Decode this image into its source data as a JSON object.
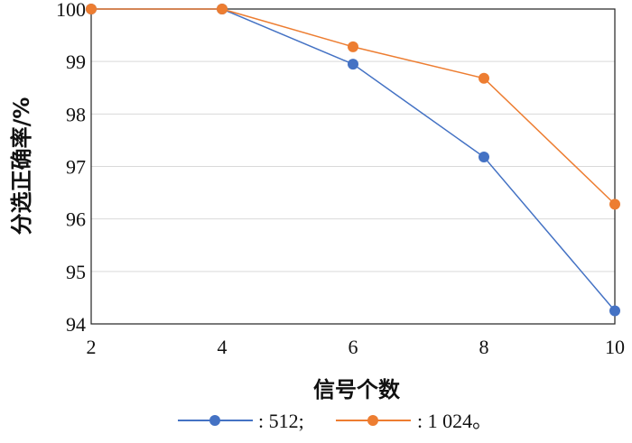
{
  "chart_data": {
    "type": "line",
    "title": "",
    "xlabel": "信号个数",
    "ylabel": "分选正确率/%",
    "x": [
      2,
      4,
      6,
      8,
      10
    ],
    "xlim": [
      2,
      10
    ],
    "ylim": [
      94,
      100
    ],
    "xticks": [
      "2",
      "4",
      "6",
      "8",
      "10"
    ],
    "yticks": [
      "94",
      "95",
      "96",
      "97",
      "98",
      "99",
      "100"
    ],
    "grid": "horizontal",
    "legend_position": "bottom",
    "series": [
      {
        "name": ": 512;",
        "color": "#4472C4",
        "values": [
          100,
          100,
          98.95,
          97.18,
          94.25
        ]
      },
      {
        "name": ": 1 024。",
        "color": "#ED7D31",
        "values": [
          100,
          100,
          99.28,
          98.68,
          96.28
        ]
      }
    ]
  }
}
